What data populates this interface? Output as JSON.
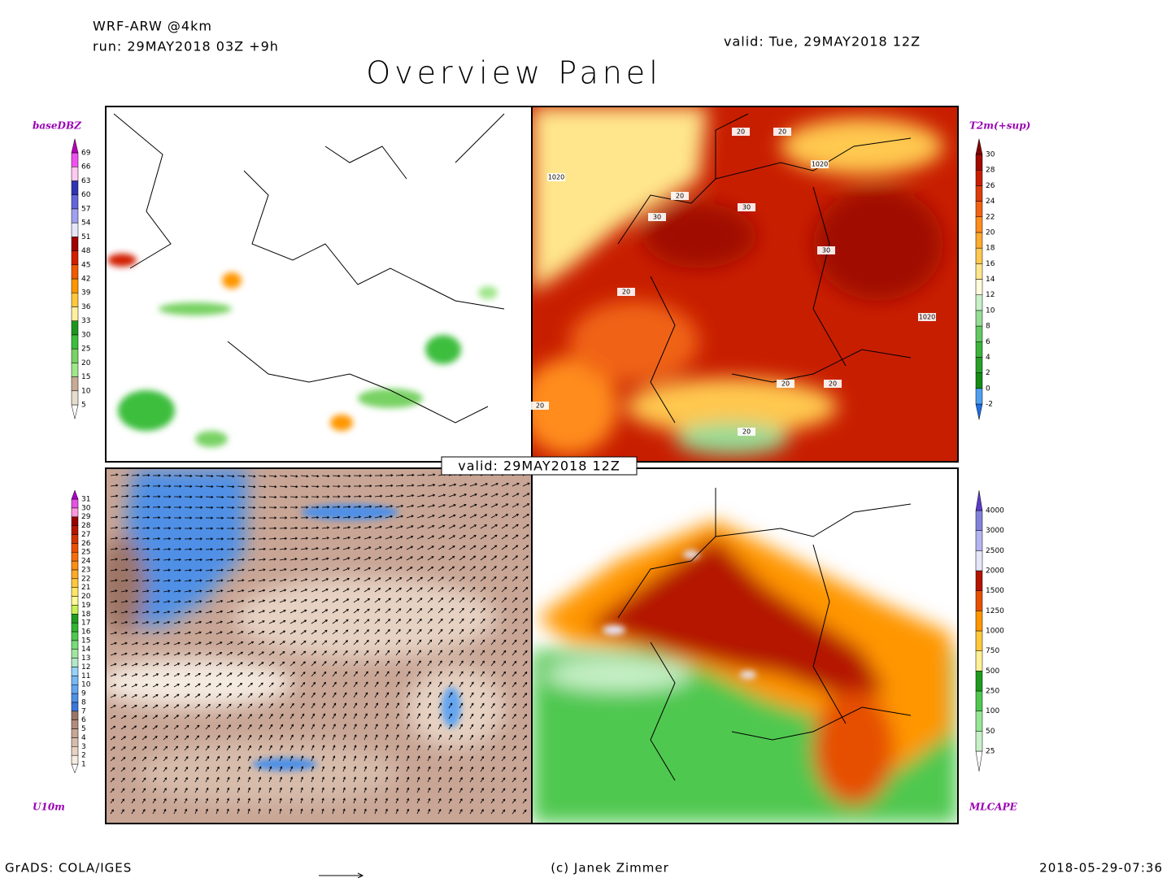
{
  "header": {
    "model": "WRF-ARW @4km",
    "run": "run: 29MAY2018 03Z +9h",
    "valid": "valid: Tue, 29MAY2018 12Z",
    "title": "Overview Panel"
  },
  "center_label": "valid: 29MAY2018 12Z",
  "panels": [
    {
      "label": "baseDBZ",
      "labels": [
        5,
        10,
        15,
        20,
        25,
        30,
        33,
        36,
        39,
        42,
        45,
        48,
        51,
        54,
        57,
        60,
        63,
        66,
        69
      ],
      "colors": [
        "#ffffff",
        "#e6dccd",
        "#c8aa96",
        "#a0e68c",
        "#78d264",
        "#3cbe3c",
        "#1e961e",
        "#fff0a0",
        "#ffc83c",
        "#ff9600",
        "#f05a00",
        "#d21e00",
        "#a00000",
        "#e6e6fa",
        "#a0a0f0",
        "#6464dc",
        "#3232b4",
        "#ffc8f0",
        "#f050f0",
        "#b400b4"
      ]
    },
    {
      "label": "T2m(+sup)",
      "labels": [
        -2,
        0,
        2,
        4,
        6,
        8,
        10,
        12,
        14,
        16,
        18,
        20,
        22,
        24,
        26,
        28,
        30
      ],
      "colors": [
        "#1e6ee6",
        "#50a0f0",
        "#148c14",
        "#28a028",
        "#3cb43c",
        "#64c864",
        "#96dc96",
        "#c8f0c8",
        "#fffadc",
        "#ffe68c",
        "#ffc850",
        "#ffaa32",
        "#ff8c1e",
        "#f06414",
        "#dc3c0a",
        "#c81e00",
        "#a00a00",
        "#820000"
      ]
    },
    {
      "label": "U10m",
      "labels": [
        1,
        2,
        3,
        4,
        5,
        6,
        7,
        8,
        9,
        10,
        11,
        12,
        13,
        14,
        15,
        16,
        17,
        18,
        19,
        20,
        21,
        22,
        23,
        24,
        25,
        26,
        27,
        28,
        29,
        30,
        31
      ],
      "colors": [
        "#ffffff",
        "#f5ebe1",
        "#e6d2c3",
        "#d7bcab",
        "#c8a595",
        "#b48c7d",
        "#9c7566",
        "#3c78dc",
        "#5090e6",
        "#64a5f0",
        "#78b9f5",
        "#96d2fa",
        "#b4e6c8",
        "#a0e6a0",
        "#78dc78",
        "#50c850",
        "#32b432",
        "#1e9b1e",
        "#c8f050",
        "#fffa96",
        "#ffe664",
        "#ffc83c",
        "#ffaa28",
        "#ff8c14",
        "#f56e0a",
        "#eb5000",
        "#d23200",
        "#b41400",
        "#960000",
        "#ff96dc",
        "#e650e6",
        "#aa00c8"
      ]
    },
    {
      "label": "MLCAPE",
      "labels": [
        25,
        50,
        100,
        250,
        500,
        750,
        1000,
        1250,
        1500,
        2000,
        2500,
        3000,
        4000
      ],
      "colors": [
        "#ffffff",
        "#c8f0c8",
        "#96e696",
        "#50c850",
        "#1e9b1e",
        "#fff096",
        "#ffc83c",
        "#ff9600",
        "#e65000",
        "#b41400",
        "#e6e6fa",
        "#b4b4f0",
        "#8282dc",
        "#5a3cc8"
      ]
    }
  ],
  "contour_labels": [
    "1020",
    "1020",
    "1020",
    "20",
    "20",
    "20",
    "20",
    "20",
    "20",
    "20",
    "30",
    "30",
    "30",
    "20"
  ],
  "footer": {
    "left": "GrADS: COLA/IGES",
    "center": "(c) Janek Zimmer",
    "right": "2018-05-29-07:36"
  }
}
